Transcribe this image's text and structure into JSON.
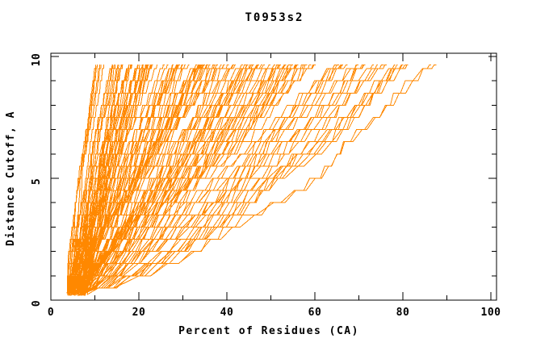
{
  "window": {
    "background": "#ffffff"
  },
  "chart_data": {
    "type": "line",
    "title": "T0953s2",
    "xlabel": "Percent of Residues (CA)",
    "ylabel": "Distance Cutoff, A",
    "xlim": [
      0,
      101.3
    ],
    "ylim": [
      0,
      10.13
    ],
    "xticks_major": [
      0,
      20,
      40,
      60,
      80,
      100
    ],
    "xticks_minor_step": 10,
    "yticks_major": [
      0,
      5,
      10
    ],
    "yticks_minor_step": 1,
    "grid": false,
    "legend": null,
    "series_color": "#ff8800",
    "axis_color": "#000000",
    "description": "Ensemble of per-model GDT curves: percent of CA residues (x) under a distance cutoff in Angstroms (y). ~140 overlapping orange step-curves fanning from ~4-8% at cutoff 0.2 up to 10-88% at cutoff ~9.65.",
    "curve_ensemble": {
      "count": 140,
      "seed": 12,
      "cutoff_start_range": [
        0.18,
        0.36
      ],
      "cutoff_top": 9.65,
      "cutoff_step": 0.5,
      "start_percent_range": [
        3.6,
        8.4
      ],
      "top_percent_groups": [
        {
          "weight": 6,
          "range": [
            9.5,
            13.5
          ]
        },
        {
          "weight": 46,
          "range": [
            14,
            30
          ]
        },
        {
          "weight": 44,
          "range": [
            30,
            50
          ]
        },
        {
          "weight": 27,
          "range": [
            50,
            68
          ]
        },
        {
          "weight": 17,
          "range": [
            68,
            88
          ]
        }
      ],
      "estimated_right_envelope": [
        {
          "cutoff": 0.8,
          "percent": 29
        },
        {
          "cutoff": 2.7,
          "percent": 45
        },
        {
          "cutoff": 4.0,
          "percent": 60
        },
        {
          "cutoff": 5.7,
          "percent": 68
        },
        {
          "cutoff": 8.0,
          "percent": 80
        },
        {
          "cutoff": 9.65,
          "percent": 87.5
        }
      ],
      "estimated_left_envelope": [
        {
          "cutoff": 0.3,
          "percent": 3.6
        },
        {
          "cutoff": 5.0,
          "percent": 7.3
        },
        {
          "cutoff": 9.65,
          "percent": 10.5
        }
      ]
    }
  }
}
